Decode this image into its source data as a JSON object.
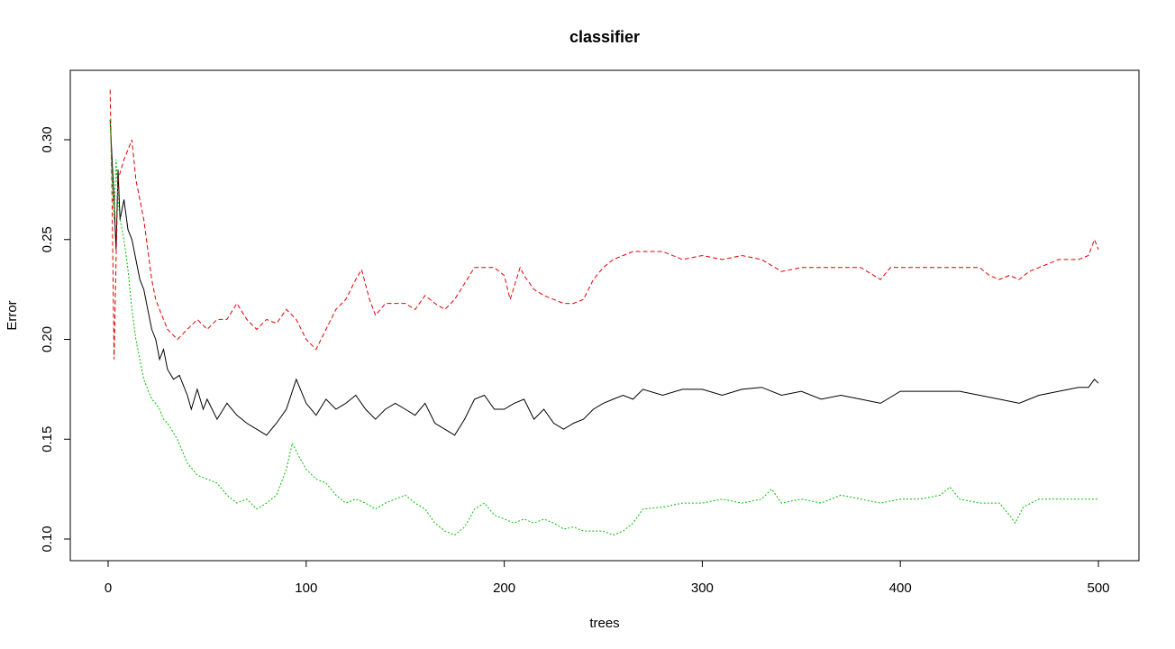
{
  "chart_data": {
    "type": "line",
    "title": "classifier",
    "xlabel": "trees",
    "ylabel": "Error",
    "xlim": [
      0,
      500
    ],
    "ylim": [
      0.1,
      0.32
    ],
    "x_ticks": [
      "0",
      "100",
      "200",
      "300",
      "400",
      "500"
    ],
    "y_ticks": [
      "0.10",
      "0.15",
      "0.20",
      "0.25",
      "0.30"
    ],
    "grid": false,
    "legend": "none",
    "series": [
      {
        "color": "#000000",
        "dash": "solid",
        "points": [
          [
            1,
            0.31
          ],
          [
            2,
            0.29
          ],
          [
            3,
            0.27
          ],
          [
            4,
            0.245
          ],
          [
            5,
            0.285
          ],
          [
            6,
            0.26
          ],
          [
            8,
            0.27
          ],
          [
            10,
            0.255
          ],
          [
            12,
            0.25
          ],
          [
            14,
            0.24
          ],
          [
            16,
            0.23
          ],
          [
            18,
            0.225
          ],
          [
            20,
            0.215
          ],
          [
            22,
            0.205
          ],
          [
            24,
            0.2
          ],
          [
            26,
            0.19
          ],
          [
            28,
            0.195
          ],
          [
            30,
            0.185
          ],
          [
            33,
            0.18
          ],
          [
            36,
            0.182
          ],
          [
            40,
            0.172
          ],
          [
            42,
            0.165
          ],
          [
            45,
            0.175
          ],
          [
            48,
            0.165
          ],
          [
            50,
            0.17
          ],
          [
            55,
            0.16
          ],
          [
            60,
            0.168
          ],
          [
            65,
            0.162
          ],
          [
            70,
            0.158
          ],
          [
            75,
            0.155
          ],
          [
            80,
            0.152
          ],
          [
            85,
            0.158
          ],
          [
            90,
            0.165
          ],
          [
            95,
            0.18
          ],
          [
            100,
            0.168
          ],
          [
            105,
            0.162
          ],
          [
            110,
            0.17
          ],
          [
            115,
            0.165
          ],
          [
            120,
            0.168
          ],
          [
            125,
            0.172
          ],
          [
            130,
            0.165
          ],
          [
            135,
            0.16
          ],
          [
            140,
            0.165
          ],
          [
            145,
            0.168
          ],
          [
            150,
            0.165
          ],
          [
            155,
            0.162
          ],
          [
            160,
            0.168
          ],
          [
            165,
            0.158
          ],
          [
            170,
            0.155
          ],
          [
            175,
            0.152
          ],
          [
            180,
            0.16
          ],
          [
            185,
            0.17
          ],
          [
            190,
            0.172
          ],
          [
            195,
            0.165
          ],
          [
            200,
            0.165
          ],
          [
            205,
            0.168
          ],
          [
            210,
            0.17
          ],
          [
            215,
            0.16
          ],
          [
            220,
            0.165
          ],
          [
            225,
            0.158
          ],
          [
            230,
            0.155
          ],
          [
            235,
            0.158
          ],
          [
            240,
            0.16
          ],
          [
            245,
            0.165
          ],
          [
            250,
            0.168
          ],
          [
            255,
            0.17
          ],
          [
            260,
            0.172
          ],
          [
            265,
            0.17
          ],
          [
            270,
            0.175
          ],
          [
            280,
            0.172
          ],
          [
            290,
            0.175
          ],
          [
            300,
            0.175
          ],
          [
            310,
            0.172
          ],
          [
            320,
            0.175
          ],
          [
            330,
            0.176
          ],
          [
            340,
            0.172
          ],
          [
            350,
            0.174
          ],
          [
            360,
            0.17
          ],
          [
            370,
            0.172
          ],
          [
            380,
            0.17
          ],
          [
            390,
            0.168
          ],
          [
            400,
            0.174
          ],
          [
            410,
            0.174
          ],
          [
            420,
            0.174
          ],
          [
            430,
            0.174
          ],
          [
            440,
            0.172
          ],
          [
            450,
            0.17
          ],
          [
            460,
            0.168
          ],
          [
            470,
            0.172
          ],
          [
            480,
            0.174
          ],
          [
            490,
            0.176
          ],
          [
            495,
            0.176
          ],
          [
            498,
            0.18
          ],
          [
            500,
            0.178
          ]
        ]
      },
      {
        "color": "#df0000",
        "dash": "dashed",
        "points": [
          [
            1,
            0.325
          ],
          [
            2,
            0.27
          ],
          [
            3,
            0.19
          ],
          [
            4,
            0.24
          ],
          [
            5,
            0.28
          ],
          [
            8,
            0.29
          ],
          [
            10,
            0.295
          ],
          [
            12,
            0.3
          ],
          [
            14,
            0.28
          ],
          [
            16,
            0.27
          ],
          [
            18,
            0.26
          ],
          [
            20,
            0.245
          ],
          [
            22,
            0.23
          ],
          [
            24,
            0.22
          ],
          [
            26,
            0.215
          ],
          [
            28,
            0.21
          ],
          [
            30,
            0.205
          ],
          [
            35,
            0.2
          ],
          [
            40,
            0.205
          ],
          [
            45,
            0.21
          ],
          [
            50,
            0.205
          ],
          [
            55,
            0.21
          ],
          [
            60,
            0.21
          ],
          [
            65,
            0.218
          ],
          [
            70,
            0.21
          ],
          [
            75,
            0.205
          ],
          [
            80,
            0.21
          ],
          [
            85,
            0.208
          ],
          [
            90,
            0.215
          ],
          [
            95,
            0.21
          ],
          [
            100,
            0.2
          ],
          [
            105,
            0.195
          ],
          [
            110,
            0.205
          ],
          [
            115,
            0.215
          ],
          [
            120,
            0.22
          ],
          [
            125,
            0.23
          ],
          [
            128,
            0.235
          ],
          [
            132,
            0.22
          ],
          [
            135,
            0.212
          ],
          [
            140,
            0.218
          ],
          [
            145,
            0.218
          ],
          [
            150,
            0.218
          ],
          [
            155,
            0.215
          ],
          [
            160,
            0.222
          ],
          [
            165,
            0.218
          ],
          [
            170,
            0.215
          ],
          [
            175,
            0.22
          ],
          [
            180,
            0.228
          ],
          [
            185,
            0.236
          ],
          [
            190,
            0.236
          ],
          [
            195,
            0.236
          ],
          [
            200,
            0.232
          ],
          [
            203,
            0.22
          ],
          [
            208,
            0.236
          ],
          [
            210,
            0.232
          ],
          [
            215,
            0.225
          ],
          [
            220,
            0.222
          ],
          [
            225,
            0.22
          ],
          [
            230,
            0.218
          ],
          [
            235,
            0.218
          ],
          [
            240,
            0.22
          ],
          [
            245,
            0.23
          ],
          [
            250,
            0.236
          ],
          [
            255,
            0.24
          ],
          [
            260,
            0.242
          ],
          [
            265,
            0.244
          ],
          [
            270,
            0.244
          ],
          [
            280,
            0.244
          ],
          [
            290,
            0.24
          ],
          [
            300,
            0.242
          ],
          [
            310,
            0.24
          ],
          [
            320,
            0.242
          ],
          [
            330,
            0.24
          ],
          [
            340,
            0.234
          ],
          [
            350,
            0.236
          ],
          [
            360,
            0.236
          ],
          [
            370,
            0.236
          ],
          [
            380,
            0.236
          ],
          [
            390,
            0.23
          ],
          [
            395,
            0.236
          ],
          [
            400,
            0.236
          ],
          [
            410,
            0.236
          ],
          [
            420,
            0.236
          ],
          [
            430,
            0.236
          ],
          [
            440,
            0.236
          ],
          [
            445,
            0.232
          ],
          [
            450,
            0.23
          ],
          [
            455,
            0.232
          ],
          [
            460,
            0.23
          ],
          [
            465,
            0.234
          ],
          [
            470,
            0.236
          ],
          [
            480,
            0.24
          ],
          [
            490,
            0.24
          ],
          [
            495,
            0.242
          ],
          [
            498,
            0.25
          ],
          [
            500,
            0.245
          ]
        ]
      },
      {
        "color": "#00bb00",
        "dash": "dotted",
        "points": [
          [
            1,
            0.31
          ],
          [
            2,
            0.28
          ],
          [
            3,
            0.26
          ],
          [
            4,
            0.29
          ],
          [
            5,
            0.27
          ],
          [
            6,
            0.26
          ],
          [
            8,
            0.25
          ],
          [
            10,
            0.235
          ],
          [
            12,
            0.215
          ],
          [
            14,
            0.2
          ],
          [
            16,
            0.19
          ],
          [
            18,
            0.18
          ],
          [
            20,
            0.175
          ],
          [
            22,
            0.17
          ],
          [
            24,
            0.168
          ],
          [
            26,
            0.165
          ],
          [
            28,
            0.16
          ],
          [
            30,
            0.158
          ],
          [
            35,
            0.15
          ],
          [
            40,
            0.138
          ],
          [
            45,
            0.132
          ],
          [
            50,
            0.13
          ],
          [
            55,
            0.128
          ],
          [
            60,
            0.122
          ],
          [
            65,
            0.118
          ],
          [
            70,
            0.12
          ],
          [
            75,
            0.115
          ],
          [
            80,
            0.118
          ],
          [
            85,
            0.122
          ],
          [
            90,
            0.135
          ],
          [
            93,
            0.148
          ],
          [
            96,
            0.142
          ],
          [
            100,
            0.135
          ],
          [
            105,
            0.13
          ],
          [
            110,
            0.128
          ],
          [
            115,
            0.122
          ],
          [
            120,
            0.118
          ],
          [
            125,
            0.12
          ],
          [
            130,
            0.118
          ],
          [
            135,
            0.115
          ],
          [
            140,
            0.118
          ],
          [
            145,
            0.12
          ],
          [
            150,
            0.122
          ],
          [
            155,
            0.118
          ],
          [
            160,
            0.115
          ],
          [
            165,
            0.108
          ],
          [
            170,
            0.104
          ],
          [
            175,
            0.102
          ],
          [
            180,
            0.106
          ],
          [
            185,
            0.115
          ],
          [
            190,
            0.118
          ],
          [
            195,
            0.112
          ],
          [
            200,
            0.11
          ],
          [
            205,
            0.108
          ],
          [
            210,
            0.11
          ],
          [
            215,
            0.108
          ],
          [
            220,
            0.11
          ],
          [
            225,
            0.108
          ],
          [
            230,
            0.105
          ],
          [
            235,
            0.106
          ],
          [
            240,
            0.104
          ],
          [
            245,
            0.104
          ],
          [
            250,
            0.104
          ],
          [
            255,
            0.102
          ],
          [
            260,
            0.104
          ],
          [
            265,
            0.108
          ],
          [
            270,
            0.115
          ],
          [
            280,
            0.116
          ],
          [
            290,
            0.118
          ],
          [
            300,
            0.118
          ],
          [
            310,
            0.12
          ],
          [
            320,
            0.118
          ],
          [
            330,
            0.12
          ],
          [
            335,
            0.125
          ],
          [
            340,
            0.118
          ],
          [
            350,
            0.12
          ],
          [
            360,
            0.118
          ],
          [
            370,
            0.122
          ],
          [
            380,
            0.12
          ],
          [
            390,
            0.118
          ],
          [
            400,
            0.12
          ],
          [
            410,
            0.12
          ],
          [
            420,
            0.122
          ],
          [
            425,
            0.126
          ],
          [
            430,
            0.12
          ],
          [
            440,
            0.118
          ],
          [
            450,
            0.118
          ],
          [
            455,
            0.112
          ],
          [
            458,
            0.108
          ],
          [
            462,
            0.116
          ],
          [
            470,
            0.12
          ],
          [
            480,
            0.12
          ],
          [
            490,
            0.12
          ],
          [
            500,
            0.12
          ]
        ]
      }
    ]
  }
}
